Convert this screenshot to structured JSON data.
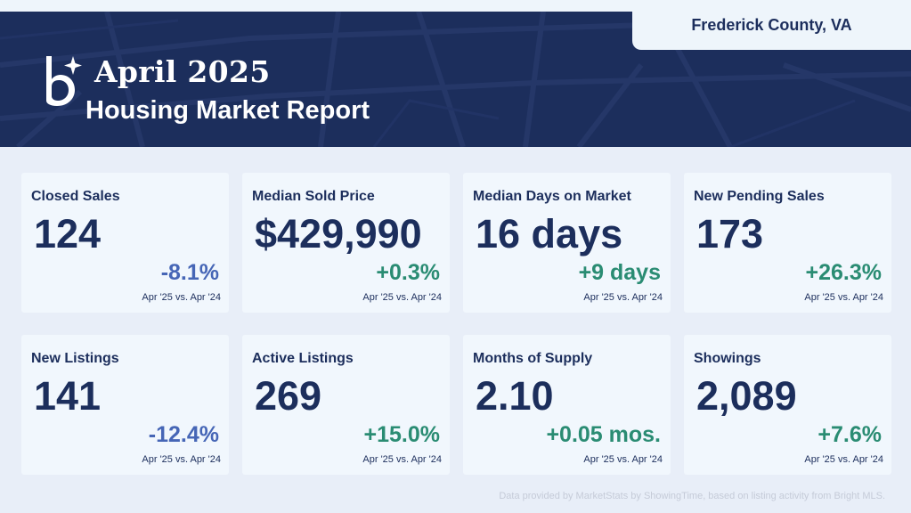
{
  "header": {
    "location": "Frederick County, VA",
    "month": "April 2025",
    "subtitle": "Housing Market Report",
    "colors": {
      "navy": "#1c2e5c",
      "negative": "#4666b6",
      "positive": "#2a8c73"
    }
  },
  "metrics": [
    {
      "label": "Closed Sales",
      "value": "124",
      "change": "-8.1%",
      "trend": "negative",
      "comparison": "Apr '25 vs. Apr '24"
    },
    {
      "label": "Median Sold Price",
      "value": "$429,990",
      "change": "+0.3%",
      "trend": "positive",
      "comparison": "Apr '25 vs. Apr '24"
    },
    {
      "label": "Median Days on Market",
      "value": "16 days",
      "change": "+9 days",
      "trend": "positive",
      "comparison": "Apr '25 vs. Apr '24"
    },
    {
      "label": "New Pending Sales",
      "value": "173",
      "change": "+26.3%",
      "trend": "positive",
      "comparison": "Apr '25 vs. Apr '24"
    },
    {
      "label": "New Listings",
      "value": "141",
      "change": "-12.4%",
      "trend": "negative",
      "comparison": "Apr '25 vs. Apr '24"
    },
    {
      "label": "Active Listings",
      "value": "269",
      "change": "+15.0%",
      "trend": "positive",
      "comparison": "Apr '25 vs. Apr '24"
    },
    {
      "label": "Months of Supply",
      "value": "2.10",
      "change": "+0.05 mos.",
      "trend": "positive",
      "comparison": "Apr '25 vs. Apr '24"
    },
    {
      "label": "Showings",
      "value": "2,089",
      "change": "+7.6%",
      "trend": "positive",
      "comparison": "Apr '25 vs. Apr '24"
    }
  ],
  "footer": {
    "note": "Data provided by MarketStats by ShowingTime, based on listing activity from Bright MLS."
  }
}
